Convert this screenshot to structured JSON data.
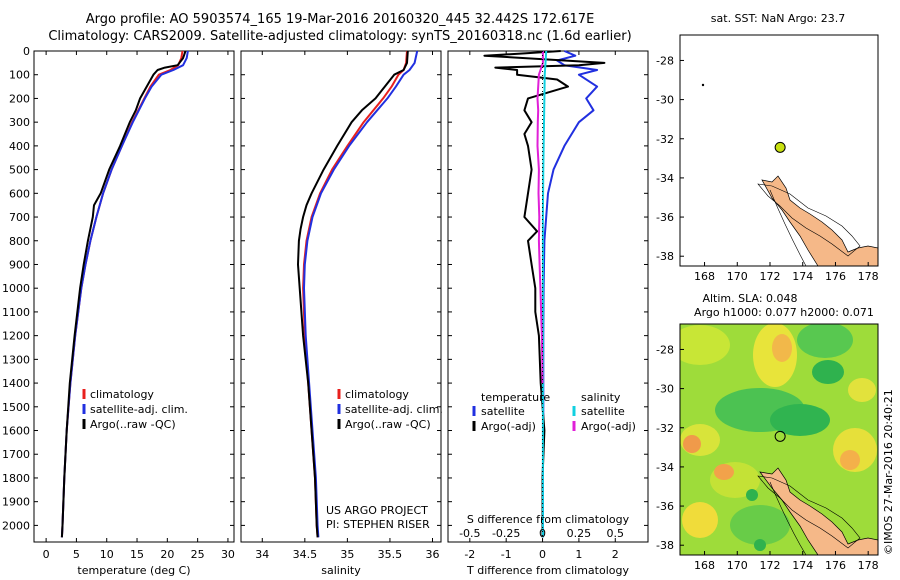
{
  "header": {
    "line1": "Argo profile: AO 5903574_165 19-Mar-2016 20160320_445 32.442S 172.617E",
    "line2": "Climatology: CARS2009. Satellite-adjusted climatology: synTS_20160318.nc (1.6d earlier)"
  },
  "chart_data": [
    {
      "id": "temperature",
      "type": "line",
      "xlabel": "temperature (deg C)",
      "ylabel": "",
      "xlim": [
        -2,
        31
      ],
      "ylim": [
        0,
        2070
      ],
      "xticks": [
        0,
        5,
        10,
        15,
        20,
        25,
        30
      ],
      "xtick_labels": [
        "0",
        "5",
        "10",
        "15",
        "20",
        "25",
        "30"
      ],
      "yticks": [
        0,
        100,
        200,
        300,
        400,
        500,
        600,
        700,
        800,
        900,
        1000,
        1100,
        1200,
        1300,
        1400,
        1500,
        1600,
        1700,
        1800,
        1900,
        2000
      ],
      "ytick_labels": [
        "0",
        "100",
        "200",
        "300",
        "400",
        "500",
        "600",
        "700",
        "800",
        "900",
        "1000",
        "1100",
        "1200",
        "1300",
        "1400",
        "1500",
        "1600",
        "1700",
        "1800",
        "1900",
        "2000"
      ],
      "legend": {
        "placement": "lower-center",
        "entries": [
          {
            "label": "climatology",
            "color": "#e8201e"
          },
          {
            "label": "satellite-adj. clim.",
            "color": "#2130e0"
          },
          {
            "label": "Argo(..raw -QC)",
            "color": "#000000"
          }
        ]
      },
      "series": [
        {
          "name": "climatology",
          "color": "#e8201e",
          "depth": [
            0,
            30,
            60,
            80,
            100,
            150,
            200,
            300,
            400,
            500,
            600,
            700,
            800,
            900,
            1000,
            1200,
            1400,
            1600,
            1800,
            2000,
            2050
          ],
          "values": [
            22.5,
            22.3,
            21.8,
            20.5,
            18.6,
            17.2,
            16.2,
            14.2,
            12.5,
            10.8,
            9.4,
            8.3,
            7.3,
            6.5,
            5.8,
            4.8,
            4.0,
            3.4,
            3.0,
            2.7,
            2.6
          ]
        },
        {
          "name": "satellite",
          "color": "#2130e0",
          "depth": [
            0,
            30,
            60,
            80,
            100,
            150,
            200,
            300,
            400,
            500,
            600,
            700,
            800,
            900,
            1000,
            1200,
            1400,
            1600,
            1800,
            2000,
            2050
          ],
          "values": [
            23.4,
            23.2,
            22.6,
            21.0,
            19.0,
            17.4,
            16.3,
            14.3,
            12.5,
            10.8,
            9.4,
            8.3,
            7.3,
            6.5,
            5.8,
            4.8,
            4.0,
            3.4,
            3.0,
            2.7,
            2.6
          ]
        },
        {
          "name": "Argo",
          "color": "#000000",
          "depth": [
            0,
            30,
            60,
            70,
            80,
            100,
            150,
            200,
            250,
            300,
            400,
            500,
            600,
            650,
            700,
            800,
            900,
            1000,
            1200,
            1400,
            1600,
            1800,
            2000,
            2050
          ],
          "values": [
            23.0,
            22.6,
            21.7,
            19.6,
            18.4,
            17.7,
            16.6,
            15.5,
            14.8,
            13.8,
            12.2,
            10.4,
            9.0,
            7.9,
            7.7,
            6.9,
            6.2,
            5.6,
            4.7,
            3.9,
            3.4,
            3.0,
            2.7,
            2.6
          ]
        }
      ]
    },
    {
      "id": "salinity",
      "type": "line",
      "xlabel": "salinity",
      "ylabel": "",
      "xlim": [
        33.75,
        36.1
      ],
      "ylim": [
        0,
        2070
      ],
      "xticks": [
        34,
        34.5,
        35,
        35.5,
        36
      ],
      "xtick_labels": [
        "34",
        "34.5",
        "35",
        "35.5",
        "36"
      ],
      "legend": {
        "placement": "lower-center",
        "entries": [
          {
            "label": "climatology",
            "color": "#e8201e"
          },
          {
            "label": "satellite-adj. clim.",
            "color": "#2130e0"
          },
          {
            "label": "Argo(..raw -QC)",
            "color": "#000000"
          }
        ]
      },
      "annotation": [
        "US ARGO PROJECT",
        "PI: STEPHEN RISER"
      ],
      "series": [
        {
          "name": "climatology",
          "color": "#e8201e",
          "depth": [
            0,
            50,
            80,
            100,
            150,
            200,
            300,
            400,
            500,
            600,
            700,
            800,
            900,
            1000,
            1200,
            1400,
            1600,
            1800,
            2000,
            2050
          ],
          "values": [
            35.7,
            35.69,
            35.66,
            35.6,
            35.52,
            35.42,
            35.19,
            35.0,
            34.82,
            34.68,
            34.58,
            34.52,
            34.49,
            34.48,
            34.5,
            34.54,
            34.58,
            34.62,
            34.64,
            34.65
          ]
        },
        {
          "name": "satellite",
          "color": "#2130e0",
          "depth": [
            0,
            50,
            80,
            100,
            150,
            200,
            300,
            400,
            500,
            600,
            700,
            800,
            900,
            1000,
            1200,
            1400,
            1600,
            1800,
            2000,
            2050
          ],
          "values": [
            35.82,
            35.79,
            35.73,
            35.66,
            35.57,
            35.47,
            35.23,
            35.02,
            34.84,
            34.69,
            34.59,
            34.53,
            34.5,
            34.49,
            34.51,
            34.55,
            34.59,
            34.63,
            34.65,
            34.66
          ]
        },
        {
          "name": "Argo",
          "color": "#000000",
          "depth": [
            0,
            50,
            80,
            100,
            150,
            200,
            250,
            300,
            400,
            500,
            600,
            650,
            700,
            750,
            800,
            900,
            1000,
            1200,
            1400,
            1600,
            1800,
            2000,
            2050
          ],
          "values": [
            35.71,
            35.7,
            35.66,
            35.55,
            35.44,
            35.33,
            35.17,
            35.05,
            34.88,
            34.72,
            34.58,
            34.52,
            34.48,
            34.45,
            34.43,
            34.42,
            34.44,
            34.48,
            34.54,
            34.58,
            34.62,
            34.64,
            34.65
          ]
        }
      ]
    },
    {
      "id": "difference",
      "type": "line",
      "xlabel": "T difference from climatology",
      "xlabel_top": "S difference from climatology",
      "xlim": [
        -2.6,
        2.9
      ],
      "ylim": [
        0,
        2070
      ],
      "xticks": [
        -2,
        -1,
        0,
        1,
        2
      ],
      "xtick_labels": [
        "-2",
        "-1",
        "0",
        "1",
        "2"
      ],
      "s_ticks": [
        -0.5,
        -0.25,
        0,
        0.25,
        0.5
      ],
      "s_tick_labels": [
        "-0.5",
        "-0.25",
        "0",
        "0.25",
        "0.5"
      ],
      "legend": {
        "placement": "lower-center",
        "headers": [
          "temperature",
          "salinity"
        ],
        "entries": [
          {
            "label": "satellite",
            "color": "#2130e0"
          },
          {
            "label": "Argo(-adj)",
            "color": "#000000"
          },
          {
            "label": "satellite",
            "color": "#11d0e0"
          },
          {
            "label": "Argo(-adj)",
            "color": "#e020d8"
          }
        ]
      },
      "series": [
        {
          "name": "T satellite",
          "color": "#2130e0",
          "depth": [
            0,
            20,
            40,
            60,
            80,
            100,
            150,
            200,
            250,
            300,
            400,
            500,
            600,
            700,
            800,
            1000,
            1200,
            1500,
            1800,
            2050
          ],
          "values": [
            0.6,
            0.9,
            0.4,
            0.6,
            1.5,
            1.0,
            1.5,
            1.2,
            1.4,
            1.0,
            0.6,
            0.3,
            0.15,
            0.1,
            0.05,
            0.03,
            0.02,
            0.02,
            0.01,
            0.01
          ]
        },
        {
          "name": "T Argo",
          "color": "#000000",
          "depth": [
            0,
            10,
            20,
            40,
            50,
            60,
            70,
            80,
            100,
            120,
            150,
            200,
            250,
            300,
            350,
            400,
            500,
            600,
            700,
            760,
            800,
            900,
            1000,
            1100,
            1200,
            1400,
            1600,
            1800,
            2000,
            2050
          ],
          "values": [
            0.5,
            -0.5,
            -1.6,
            0.6,
            1.7,
            1.0,
            -1.3,
            -0.7,
            -0.7,
            0.4,
            0.7,
            -0.4,
            -0.5,
            -0.3,
            -0.5,
            -0.4,
            -0.3,
            -0.4,
            -0.5,
            -0.15,
            -0.4,
            -0.3,
            -0.2,
            -0.2,
            -0.1,
            -0.05,
            0.05,
            0.0,
            0.0,
            0.0
          ]
        },
        {
          "name": "S satellite",
          "color": "#11d0e0",
          "depth": [
            0,
            50,
            100,
            200,
            300,
            500,
            700,
            900,
            1100,
            1300,
            1500,
            1800,
            2050
          ],
          "values": [
            0.1,
            0.08,
            0.06,
            0.05,
            0.04,
            0.02,
            0.01,
            0.01,
            0.01,
            0.01,
            0.01,
            0.01,
            0.01
          ]
        },
        {
          "name": "S Argo",
          "color": "#e020d8",
          "depth": [
            0,
            50,
            100,
            200,
            250,
            300,
            400,
            500,
            600,
            700,
            800,
            900,
            1000,
            1100,
            1200,
            1300,
            1400
          ],
          "values": [
            0.01,
            0.01,
            -0.1,
            -0.14,
            -0.12,
            -0.13,
            -0.14,
            -0.1,
            -0.11,
            -0.09,
            -0.1,
            -0.08,
            -0.06,
            -0.04,
            -0.02,
            -0.01,
            0.0
          ]
        }
      ]
    },
    {
      "id": "sst-map",
      "type": "scatter",
      "title": "sat. SST: NaN Argo: 23.7",
      "xlim": [
        166.5,
        178.6
      ],
      "ylim": [
        -38.5,
        -26.7
      ],
      "xticks": [
        168,
        170,
        172,
        174,
        176,
        178
      ],
      "xtick_labels": [
        "168",
        "170",
        "172",
        "174",
        "176",
        "178"
      ],
      "yticks": [
        -38,
        -36,
        -34,
        -32,
        -30,
        -28
      ],
      "ytick_labels": [
        "-38",
        "-36",
        "-34",
        "-32",
        "-30",
        "-28"
      ],
      "points": [
        {
          "lon": 172.62,
          "lat": -32.44,
          "color": "#c8e010"
        }
      ]
    },
    {
      "id": "altimetry-map",
      "type": "heatmap",
      "title_line1": "Altim. SLA: 0.048",
      "title_line2": "Argo h1000: 0.077 h2000: 0.071",
      "xlim": [
        166.5,
        178.6
      ],
      "ylim": [
        -38.5,
        -26.7
      ],
      "xticks": [
        168,
        170,
        172,
        174,
        176,
        178
      ],
      "xtick_labels": [
        "168",
        "170",
        "172",
        "174",
        "176",
        "178"
      ],
      "yticks": [
        -38,
        -36,
        -34,
        -32,
        -30,
        -28
      ],
      "ytick_labels": [
        "-38",
        "-36",
        "-34",
        "-32",
        "-30",
        "-28"
      ],
      "points": [
        {
          "lon": 172.62,
          "lat": -32.44
        }
      ]
    }
  ],
  "footer": {
    "credit": "©IMOS 27-Mar-2016 20:40:21"
  }
}
